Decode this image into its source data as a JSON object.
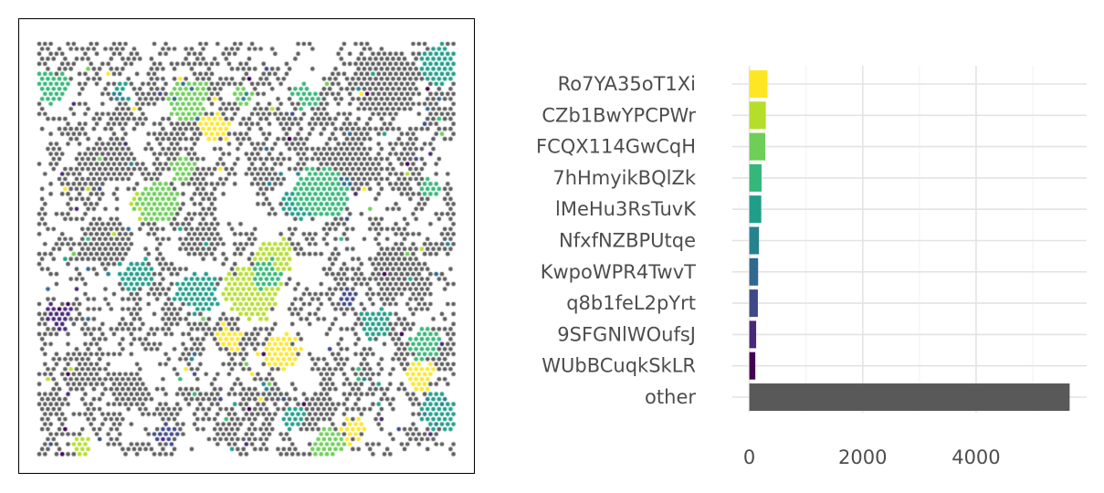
{
  "spatial_plot": {
    "description_free": true,
    "point_color_other": "#5e5e5e",
    "cluster_palette": [
      "#fde725",
      "#b5de2b",
      "#6ece58",
      "#35b779",
      "#1f9e89",
      "#26828e",
      "#31688e",
      "#3e4989",
      "#482878",
      "#440154"
    ]
  },
  "chart_data": {
    "type": "bar",
    "orientation": "horizontal",
    "categories": [
      "Ro7YA35oT1Xi",
      "CZb1BwYPCPWr",
      "FCQX114GwCqH",
      "7hHmyikBQlZk",
      "lMeHu3RsTuvK",
      "NfxfNZBPUtqe",
      "KwpoWPR4TwvT",
      "q8b1feL2pYrt",
      "9SFGNlWOufsJ",
      "WUbBCuqkSkLR",
      "other"
    ],
    "values": [
      320,
      290,
      280,
      215,
      210,
      170,
      155,
      150,
      120,
      105,
      5650
    ],
    "colors": [
      "#fde725",
      "#b5de2b",
      "#6ece58",
      "#35b779",
      "#1f9e89",
      "#26828e",
      "#31688e",
      "#3e4989",
      "#482878",
      "#440154",
      "#595959"
    ],
    "xlim": [
      -300,
      5950
    ],
    "xticks": [
      0,
      2000,
      4000
    ],
    "xtick_labels": [
      "0",
      "2000",
      "4000"
    ],
    "grid": true,
    "title": "",
    "xlabel": "",
    "ylabel": ""
  }
}
